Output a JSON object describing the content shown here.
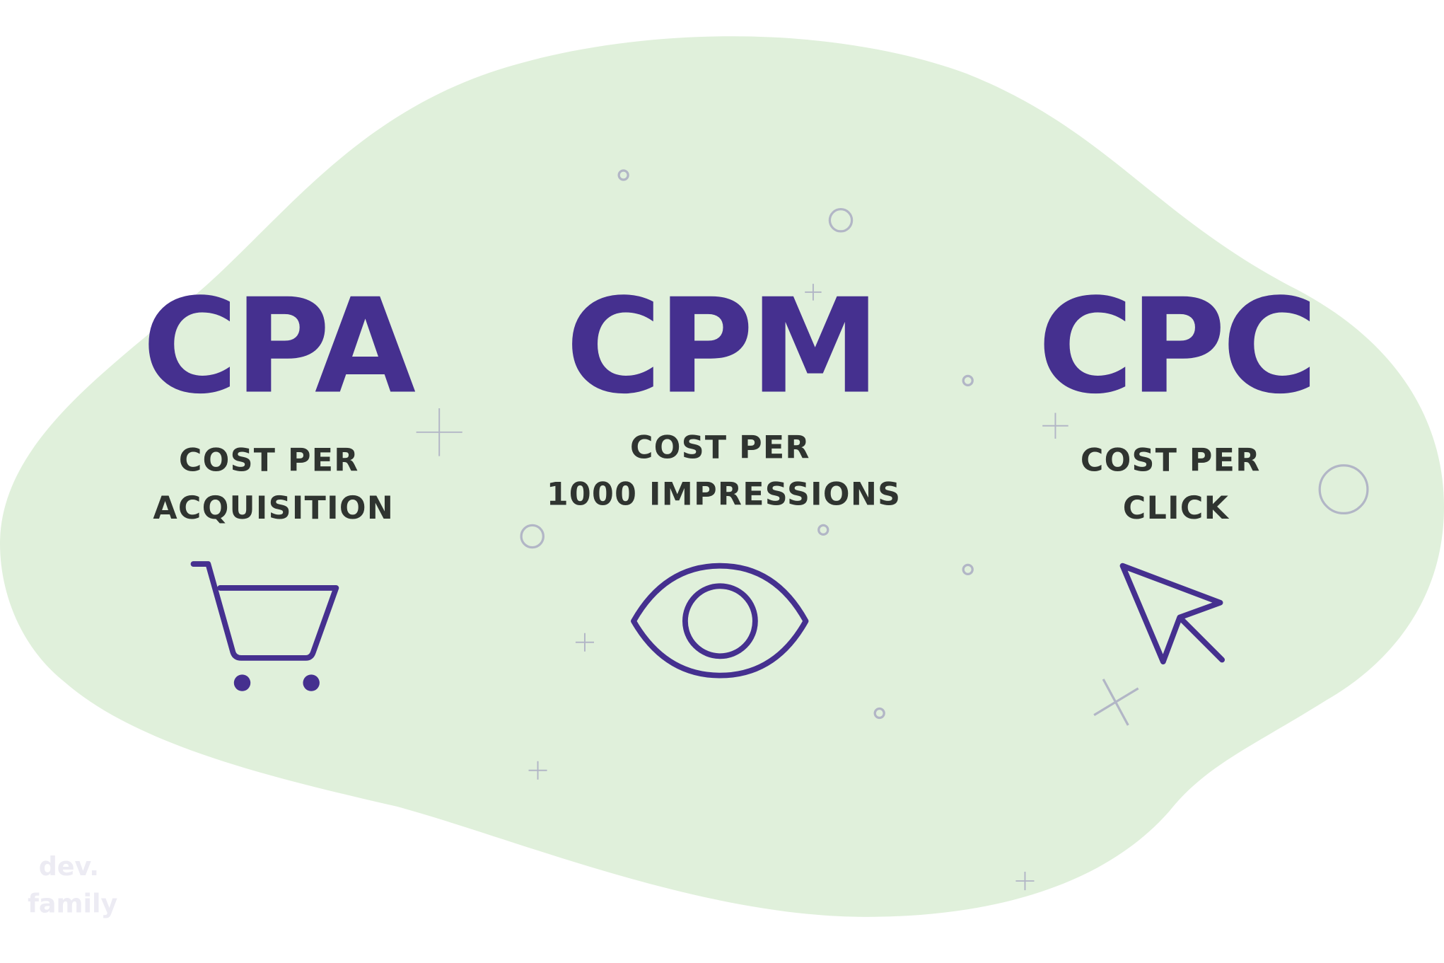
{
  "colors": {
    "accent": "#45308f",
    "text": "#2f3430",
    "background_blob": "#e0f0db",
    "decoration": "#b2b6c6"
  },
  "cards": [
    {
      "acronym": "CPA",
      "line1": "COST PER",
      "line2": "ACQUISITION",
      "icon": "shopping-cart-icon"
    },
    {
      "acronym": "CPM",
      "line1": "COST PER",
      "line2": "1000 IMPRESSIONS",
      "icon": "eye-icon"
    },
    {
      "acronym": "CPC",
      "line1": "COST PER",
      "line2": "CLICK",
      "icon": "cursor-arrow-icon"
    }
  ],
  "logo": {
    "line1": "dev.",
    "line2": "family"
  }
}
